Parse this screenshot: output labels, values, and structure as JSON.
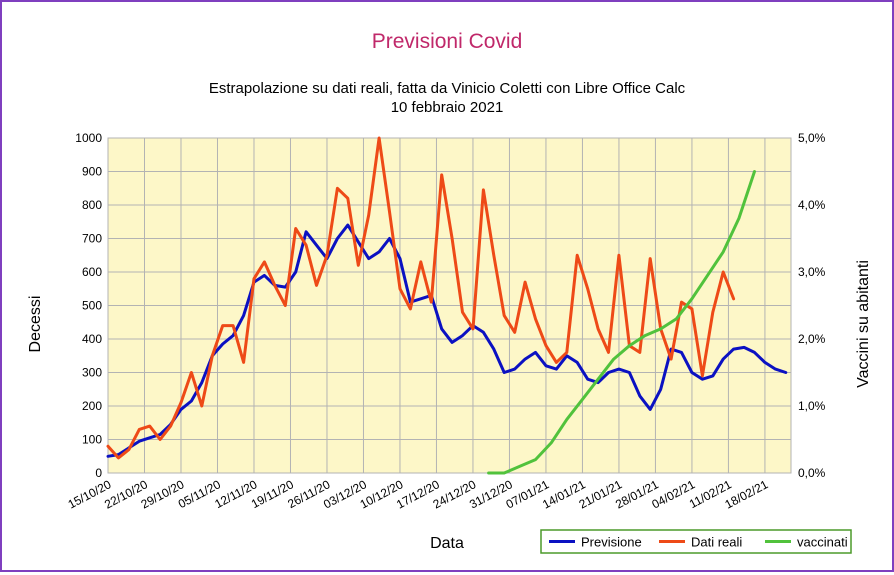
{
  "chart_data": {
    "type": "line",
    "title": "Previsioni Covid",
    "subtitle_line1": "Estrapolazione su dati reali, fatta da Vinicio Coletti con Libre Office Calc",
    "subtitle_line2": "10 febbraio 2021",
    "xlabel": "Data",
    "ylabel": "Decessi",
    "y2label": "Vaccini su abitanti",
    "ylim": [
      0,
      1000
    ],
    "y2lim": [
      0,
      5
    ],
    "xlim": [
      "2020-10-15",
      "2021-02-23"
    ],
    "y_ticks": [
      "0",
      "100",
      "200",
      "300",
      "400",
      "500",
      "600",
      "700",
      "800",
      "900",
      "1000"
    ],
    "y2_ticks": [
      "0,0%",
      "1,0%",
      "2,0%",
      "3,0%",
      "4,0%",
      "5,0%"
    ],
    "x_tick_labels": [
      "15/10/20",
      "22/10/20",
      "29/10/20",
      "05/11/20",
      "12/11/20",
      "19/11/20",
      "26/11/20",
      "03/12/20",
      "10/12/20",
      "17/12/20",
      "24/12/20",
      "31/12/20",
      "07/01/21",
      "14/01/21",
      "21/01/21",
      "28/01/21",
      "04/02/21",
      "11/02/21",
      "18/02/21"
    ],
    "grid": true,
    "legend_position": "bottom-right",
    "colors": {
      "background": "#ffffff",
      "plot_background": "#fdf7c8",
      "grid": "#b3b3b3",
      "title": "#c0286a",
      "frame": "#7f3fbf",
      "legend_border": "#4c9a2a"
    },
    "series": [
      {
        "name": "Previsione",
        "color": "#0b11c2",
        "axis": "left",
        "x": [
          "2020-10-15",
          "2020-10-17",
          "2020-10-19",
          "2020-10-21",
          "2020-10-23",
          "2020-10-25",
          "2020-10-27",
          "2020-10-29",
          "2020-10-31",
          "2020-11-02",
          "2020-11-04",
          "2020-11-06",
          "2020-11-08",
          "2020-11-10",
          "2020-11-12",
          "2020-11-14",
          "2020-11-16",
          "2020-11-18",
          "2020-11-20",
          "2020-11-22",
          "2020-11-24",
          "2020-11-26",
          "2020-11-28",
          "2020-11-30",
          "2020-12-02",
          "2020-12-04",
          "2020-12-06",
          "2020-12-08",
          "2020-12-10",
          "2020-12-12",
          "2020-12-14",
          "2020-12-16",
          "2020-12-18",
          "2020-12-20",
          "2020-12-22",
          "2020-12-24",
          "2020-12-26",
          "2020-12-28",
          "2020-12-30",
          "2021-01-01",
          "2021-01-03",
          "2021-01-05",
          "2021-01-07",
          "2021-01-09",
          "2021-01-11",
          "2021-01-13",
          "2021-01-15",
          "2021-01-17",
          "2021-01-19",
          "2021-01-21",
          "2021-01-23",
          "2021-01-25",
          "2021-01-27",
          "2021-01-29",
          "2021-01-31",
          "2021-02-02",
          "2021-02-04",
          "2021-02-06",
          "2021-02-08",
          "2021-02-10",
          "2021-02-12",
          "2021-02-14",
          "2021-02-16",
          "2021-02-18",
          "2021-02-20",
          "2021-02-22"
        ],
        "values": [
          50,
          55,
          75,
          95,
          105,
          115,
          145,
          190,
          215,
          270,
          350,
          385,
          410,
          470,
          570,
          590,
          560,
          555,
          600,
          720,
          680,
          640,
          700,
          740,
          690,
          640,
          660,
          700,
          640,
          510,
          520,
          530,
          430,
          390,
          410,
          440,
          420,
          370,
          300,
          310,
          340,
          360,
          320,
          310,
          350,
          330,
          280,
          270,
          300,
          310,
          300,
          230,
          190,
          250,
          370,
          360,
          300,
          280,
          290,
          340,
          370,
          375,
          360,
          330,
          310,
          300
        ]
      },
      {
        "name": "Dati reali",
        "color": "#ee4a17",
        "axis": "left",
        "x": [
          "2020-10-15",
          "2020-10-17",
          "2020-10-19",
          "2020-10-21",
          "2020-10-23",
          "2020-10-25",
          "2020-10-27",
          "2020-10-29",
          "2020-10-31",
          "2020-11-02",
          "2020-11-04",
          "2020-11-06",
          "2020-11-08",
          "2020-11-10",
          "2020-11-12",
          "2020-11-14",
          "2020-11-16",
          "2020-11-18",
          "2020-11-20",
          "2020-11-22",
          "2020-11-24",
          "2020-11-26",
          "2020-11-28",
          "2020-11-30",
          "2020-12-02",
          "2020-12-04",
          "2020-12-06",
          "2020-12-08",
          "2020-12-10",
          "2020-12-12",
          "2020-12-14",
          "2020-12-16",
          "2020-12-18",
          "2020-12-20",
          "2020-12-22",
          "2020-12-24",
          "2020-12-26",
          "2020-12-28",
          "2020-12-30",
          "2021-01-01",
          "2021-01-03",
          "2021-01-05",
          "2021-01-07",
          "2021-01-09",
          "2021-01-11",
          "2021-01-13",
          "2021-01-15",
          "2021-01-17",
          "2021-01-19",
          "2021-01-21",
          "2021-01-23",
          "2021-01-25",
          "2021-01-27",
          "2021-01-29",
          "2021-01-31",
          "2021-02-02",
          "2021-02-04",
          "2021-02-06",
          "2021-02-08",
          "2021-02-10",
          "2021-02-12"
        ],
        "values": [
          80,
          45,
          70,
          130,
          140,
          100,
          140,
          210,
          300,
          200,
          350,
          440,
          440,
          330,
          580,
          630,
          560,
          500,
          730,
          680,
          560,
          650,
          850,
          820,
          620,
          770,
          1000,
          780,
          550,
          490,
          630,
          510,
          890,
          700,
          480,
          430,
          845,
          650,
          470,
          420,
          570,
          460,
          380,
          330,
          360,
          650,
          550,
          430,
          360,
          650,
          380,
          360,
          640,
          430,
          340,
          510,
          490,
          290,
          480,
          600,
          520
        ]
      },
      {
        "name": "vaccinati",
        "color": "#51c23c",
        "axis": "right",
        "x": [
          "2020-12-27",
          "2020-12-30",
          "2021-01-02",
          "2021-01-05",
          "2021-01-08",
          "2021-01-11",
          "2021-01-14",
          "2021-01-17",
          "2021-01-20",
          "2021-01-23",
          "2021-01-26",
          "2021-01-29",
          "2021-02-01",
          "2021-02-04",
          "2021-02-07",
          "2021-02-10",
          "2021-02-13",
          "2021-02-16"
        ],
        "values": [
          0.0,
          0.0,
          0.1,
          0.2,
          0.45,
          0.8,
          1.1,
          1.4,
          1.7,
          1.9,
          2.05,
          2.15,
          2.3,
          2.6,
          2.95,
          3.3,
          3.8,
          4.5
        ]
      }
    ]
  }
}
